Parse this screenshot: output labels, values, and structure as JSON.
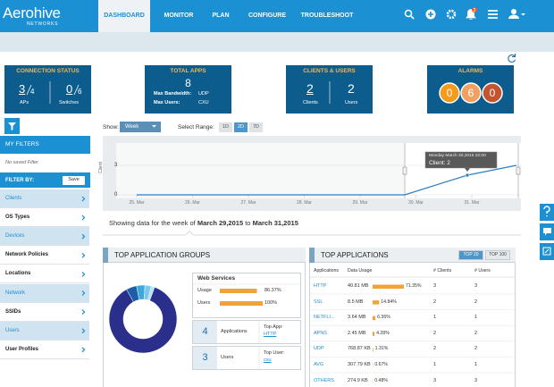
{
  "nav": {
    "logo": "Aerohive",
    "logo_sub": "NETWORKS",
    "tabs": [
      "DASHBOARD",
      "MONITOR",
      "PLAN",
      "CONFIGURE",
      "TROUBLESHOOT"
    ],
    "active_tab": 0,
    "badge": "2"
  },
  "cards": {
    "connection": {
      "title": "CONNECTION STATUS",
      "aps": "3",
      "aps_total": "4",
      "aps_label": "APs",
      "switches": "0",
      "switches_total": "6",
      "switches_label": "Switches"
    },
    "apps": {
      "title": "TOTAL APPS",
      "total": "8",
      "bandwidth_label": "Max Bandwidth:",
      "bandwidth": "UDP",
      "users_label": "Max Users:",
      "users": "CXU"
    },
    "clients": {
      "title": "CLIENTS & USERS",
      "clients": "2",
      "clients_label": "Clients",
      "users": "2",
      "users_label": "Users"
    },
    "alarms": {
      "title": "ALARMS",
      "counts": [
        {
          "value": "0",
          "color": "#f29b1d"
        },
        {
          "value": "6",
          "color": "#f0a060"
        },
        {
          "value": "0",
          "color": "#c4532f"
        }
      ]
    }
  },
  "filters": {
    "title": "MY FILTERS",
    "empty": "No saved Filter",
    "filter_by": "FILTER BY:",
    "save": "Save",
    "items": [
      {
        "label": "Clients",
        "highlight": true
      },
      {
        "label": "OS Types",
        "highlight": false
      },
      {
        "label": "Devices",
        "highlight": true
      },
      {
        "label": "Network Policies",
        "highlight": false
      },
      {
        "label": "Locations",
        "highlight": false
      },
      {
        "label": "Network",
        "highlight": true
      },
      {
        "label": "SSIDs",
        "highlight": false
      },
      {
        "label": "Users",
        "highlight": true
      },
      {
        "label": "User Profiles",
        "highlight": false
      }
    ]
  },
  "controls": {
    "show_label": "Show:",
    "show_value": "Week",
    "range_label": "Select Range:",
    "ranges": [
      "1D",
      "2D",
      "7D"
    ],
    "active_range": 1
  },
  "chart_data": {
    "type": "line",
    "y_label": "Client",
    "color": "#2d7fc1",
    "x": [
      0,
      4.8,
      5.92,
      6.8
    ],
    "values": [
      0,
      0,
      2,
      3
    ],
    "xlim": [
      -0.368,
      6.88
    ],
    "ylim": [
      0,
      4
    ],
    "yticks": [
      0,
      3
    ],
    "grid": true,
    "xticks": [
      {
        "value": 0,
        "label": "25. Mar"
      },
      {
        "value": 1,
        "label": "26. Mar"
      },
      {
        "value": 2,
        "label": "27. Mar"
      },
      {
        "value": 3,
        "label": "28. Mar"
      },
      {
        "value": 4,
        "label": "29. Mar"
      },
      {
        "value": 5,
        "label": "30. Mar"
      },
      {
        "value": 6,
        "label": "31. Mar"
      }
    ],
    "annotations": [
      "Monday March 30,2015 22:00",
      "Client: 2"
    ]
  },
  "summary": {
    "prefix": "Showing data for the week of",
    "start": "March 29,2015",
    "mid": "to",
    "end": "March 31,2015"
  },
  "groups": {
    "title": "TOP APPLICATION GROUPS",
    "donut": [
      {
        "value": 86.37,
        "color": "#2b2f8c"
      },
      {
        "value": 5,
        "color": "#1d5fa6"
      },
      {
        "value": 4,
        "color": "#3ea8dc"
      },
      {
        "value": 3,
        "color": "#7cc7ea"
      },
      {
        "value": 1.63,
        "color": "#b7def2"
      }
    ],
    "group": "Web Services",
    "usage_label": "Usage",
    "usage": 86.37,
    "usage_text": "86.37%",
    "users_label": "Users",
    "users": 100,
    "users_text": "100%",
    "stats": [
      {
        "value": "4",
        "label": "Applications",
        "top_label": "Top App:",
        "top": "HTTP"
      },
      {
        "value": "3",
        "label": "Users",
        "top_label": "Top User:",
        "top": "cxu"
      }
    ]
  },
  "apps": {
    "title": "TOP APPLICATIONS",
    "toggles": [
      "TOP 20",
      "TOP 100"
    ],
    "active_toggle": 0,
    "columns": [
      "Applications",
      "Data Usage",
      "# Clients",
      "# Users"
    ],
    "rows": [
      {
        "name": "HTTP",
        "usage": "40.81 MB",
        "share": 71.35,
        "share_text": "71.35%",
        "clients": "3",
        "users": "3"
      },
      {
        "name": "SSL",
        "usage": "8.5 MB",
        "share": 14.84,
        "share_text": "14.84%",
        "clients": "2",
        "users": "2"
      },
      {
        "name": "NETFLI...",
        "usage": "3.64 MB",
        "share": 6.36,
        "share_text": "6.36%",
        "clients": "1",
        "users": "1"
      },
      {
        "name": "APNS",
        "usage": "2.45 MB",
        "share": 4.28,
        "share_text": "4.28%",
        "clients": "2",
        "users": "2"
      },
      {
        "name": "UDP",
        "usage": "768.87 KB",
        "share": 1.31,
        "share_text": "1.31%",
        "clients": "2",
        "users": "2"
      },
      {
        "name": "AVG",
        "usage": "307.79 KB",
        "share": 0.67,
        "share_text": "0.67%",
        "clients": "1",
        "users": "1"
      },
      {
        "name": "OTHERS",
        "usage": "274.9 KB",
        "share": 0.48,
        "share_text": "0.48%",
        "clients": "3",
        "users": "3"
      }
    ]
  }
}
